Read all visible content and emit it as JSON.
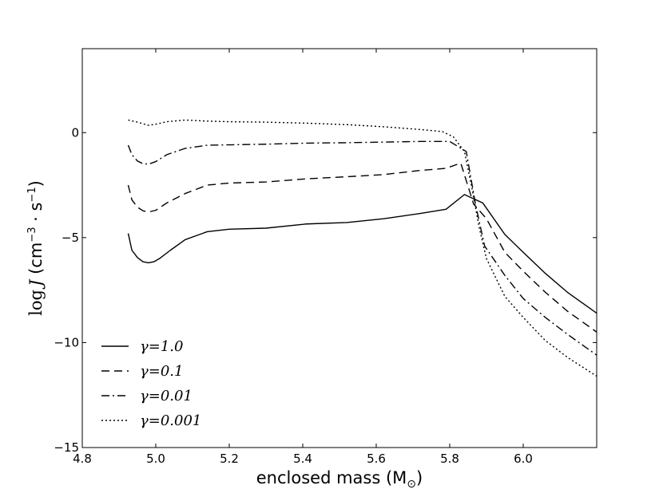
{
  "chart_data": {
    "type": "line",
    "title": "",
    "xlabel": "enclosed mass (M",
    "xlabel_sub": "⊙",
    "xlabel_close": ")",
    "ylabel_prefix": "log",
    "ylabel_var": "J",
    "ylabel_units": " (cm",
    "ylabel_exp1": "−3",
    "ylabel_mid": " · s",
    "ylabel_exp2": "−1",
    "ylabel_close": ")",
    "xlim": [
      4.8,
      6.2
    ],
    "ylim": [
      -15,
      4
    ],
    "xticks": [
      4.8,
      5.0,
      5.2,
      5.4,
      5.6,
      5.8,
      6.0
    ],
    "xtick_labels": [
      "4.8",
      "5.0",
      "5.2",
      "5.4",
      "5.6",
      "5.8",
      "6.0"
    ],
    "yticks": [
      -15,
      -10,
      -5,
      0
    ],
    "ytick_labels": [
      "−15",
      "−10",
      "−5",
      "0"
    ],
    "grid": false,
    "legend_position": "lower-left",
    "series": [
      {
        "name": "γ = 1.0",
        "legend_label": "γ=1.0",
        "dash": "",
        "x": [
          4.925,
          4.935,
          4.95,
          4.965,
          4.98,
          4.995,
          5.01,
          5.04,
          5.08,
          5.14,
          5.2,
          5.3,
          5.41,
          5.52,
          5.62,
          5.72,
          5.79,
          5.84,
          5.89,
          5.95,
          6.0,
          6.06,
          6.12,
          6.2
        ],
        "y": [
          -4.8,
          -5.6,
          -5.95,
          -6.15,
          -6.2,
          -6.15,
          -6.0,
          -5.6,
          -5.1,
          -4.72,
          -4.6,
          -4.55,
          -4.35,
          -4.28,
          -4.1,
          -3.85,
          -3.65,
          -2.95,
          -3.35,
          -4.85,
          -5.7,
          -6.7,
          -7.6,
          -8.6
        ]
      },
      {
        "name": "γ = 0.1",
        "legend_label": "γ=0.1",
        "dash": "10,6",
        "x": [
          4.925,
          4.935,
          4.95,
          4.965,
          4.98,
          5.0,
          5.03,
          5.08,
          5.14,
          5.2,
          5.3,
          5.41,
          5.52,
          5.62,
          5.72,
          5.79,
          5.83,
          5.865,
          5.9,
          5.95,
          6.0,
          6.06,
          6.12,
          6.2
        ],
        "y": [
          -2.5,
          -3.2,
          -3.55,
          -3.72,
          -3.78,
          -3.7,
          -3.35,
          -2.9,
          -2.5,
          -2.4,
          -2.35,
          -2.2,
          -2.1,
          -2.0,
          -1.8,
          -1.7,
          -1.45,
          -3.4,
          -4.1,
          -5.7,
          -6.6,
          -7.6,
          -8.5,
          -9.5
        ]
      },
      {
        "name": "γ = 0.01",
        "legend_label": "γ=0.01",
        "dash": "10,4,2,4",
        "x": [
          4.925,
          4.935,
          4.95,
          4.965,
          4.98,
          5.0,
          5.03,
          5.08,
          5.14,
          5.2,
          5.3,
          5.41,
          5.52,
          5.62,
          5.72,
          5.8,
          5.845,
          5.87,
          5.895,
          5.95,
          6.0,
          6.06,
          6.12,
          6.2
        ],
        "y": [
          -0.6,
          -1.05,
          -1.35,
          -1.48,
          -1.5,
          -1.38,
          -1.05,
          -0.75,
          -0.6,
          -0.58,
          -0.55,
          -0.5,
          -0.48,
          -0.45,
          -0.42,
          -0.42,
          -0.9,
          -3.4,
          -5.4,
          -6.8,
          -7.9,
          -8.8,
          -9.6,
          -10.6
        ]
      },
      {
        "name": "γ = 0.001",
        "legend_label": "γ=0.001",
        "dash": "2,3",
        "x": [
          4.925,
          4.95,
          4.98,
          5.0,
          5.03,
          5.08,
          5.14,
          5.2,
          5.3,
          5.41,
          5.52,
          5.62,
          5.72,
          5.78,
          5.81,
          5.84,
          5.86,
          5.88,
          5.9,
          5.95,
          6.0,
          6.06,
          6.12,
          6.2
        ],
        "y": [
          0.6,
          0.5,
          0.35,
          0.4,
          0.52,
          0.6,
          0.55,
          0.52,
          0.5,
          0.45,
          0.38,
          0.28,
          0.15,
          0.05,
          -0.2,
          -0.9,
          -2.6,
          -4.5,
          -6.0,
          -7.8,
          -8.8,
          -9.9,
          -10.7,
          -11.6
        ]
      }
    ]
  }
}
